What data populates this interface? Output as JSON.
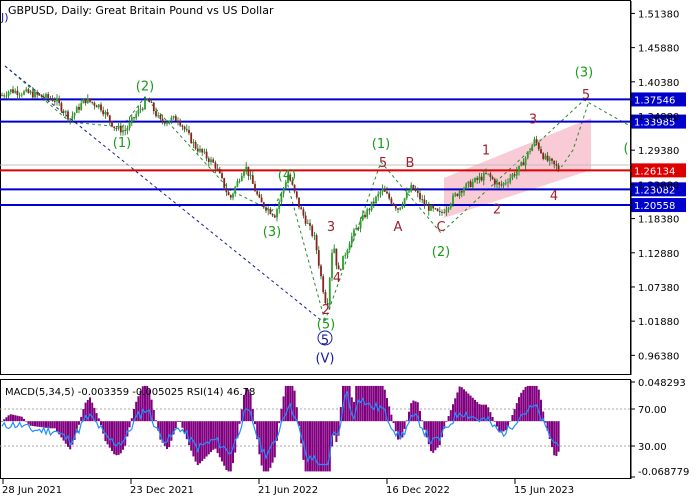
{
  "chart_data": {
    "type": "candlestick",
    "title": "GBPUSD, Daily:  Great Britain Pound vs US Dollar",
    "corner_mark": "J)",
    "price_axis": {
      "range": [
        0.9338,
        1.5338
      ],
      "ticks": [
        "1.51380",
        "1.45880",
        "1.40380",
        "1.34880",
        "1.29380",
        "1.23880",
        "1.18380",
        "1.12880",
        "1.07380",
        "1.01880",
        "0.96380"
      ]
    },
    "time_axis": {
      "labels": [
        "28 Jun 2021",
        "23 Dec 2021",
        "21 Jun 2022",
        "16 Dec 2022",
        "15 Jun 2023"
      ]
    },
    "levels": [
      {
        "value": 1.37546,
        "label": "1.37546",
        "color": "#0000cc"
      },
      {
        "value": 1.33985,
        "label": "1.33985",
        "color": "#0000cc"
      },
      {
        "value": 1.26134,
        "label": "1.26134",
        "color": "#dd0000"
      },
      {
        "value": 1.23082,
        "label": "1.23082",
        "color": "#0000cc"
      },
      {
        "value": 1.20558,
        "label": "1.20558",
        "color": "#0000cc"
      }
    ],
    "current_price_line": 1.27,
    "price_path": [
      [
        0,
        1.38
      ],
      [
        10,
        1.39
      ],
      [
        30,
        1.385
      ],
      [
        55,
        1.375
      ],
      [
        70,
        1.345
      ],
      [
        85,
        1.375
      ],
      [
        100,
        1.365
      ],
      [
        115,
        1.33
      ],
      [
        125,
        1.325
      ],
      [
        140,
        1.36
      ],
      [
        148,
        1.375
      ],
      [
        160,
        1.34
      ],
      [
        178,
        1.345
      ],
      [
        195,
        1.3
      ],
      [
        215,
        1.27
      ],
      [
        230,
        1.215
      ],
      [
        245,
        1.27
      ],
      [
        260,
        1.21
      ],
      [
        275,
        1.19
      ],
      [
        288,
        1.255
      ],
      [
        300,
        1.2
      ],
      [
        315,
        1.15
      ],
      [
        322,
        1.08
      ],
      [
        327,
        1.04
      ],
      [
        333,
        1.15
      ],
      [
        338,
        1.095
      ],
      [
        350,
        1.15
      ],
      [
        365,
        1.19
      ],
      [
        382,
        1.23
      ],
      [
        398,
        1.2
      ],
      [
        412,
        1.235
      ],
      [
        425,
        1.205
      ],
      [
        440,
        1.19
      ],
      [
        460,
        1.23
      ],
      [
        487,
        1.255
      ],
      [
        500,
        1.235
      ],
      [
        520,
        1.265
      ],
      [
        535,
        1.31
      ],
      [
        545,
        1.28
      ],
      [
        558,
        1.265
      ]
    ],
    "wave_labels": [
      {
        "text": "(2)",
        "x": 145,
        "price": 1.398,
        "color": "#1a9a1a"
      },
      {
        "text": "(1)",
        "x": 122,
        "price": 1.307,
        "color": "#1a9a1a"
      },
      {
        "text": "(4)",
        "x": 287,
        "price": 1.255,
        "color": "#1a9a1a"
      },
      {
        "text": "(3)",
        "x": 272,
        "price": 1.164,
        "color": "#1a9a1a"
      },
      {
        "text": "(1)",
        "x": 381,
        "price": 1.305,
        "color": "#1a9a1a"
      },
      {
        "text": "(2)",
        "x": 441,
        "price": 1.132,
        "color": "#1a9a1a"
      },
      {
        "text": "(3)",
        "x": 584,
        "price": 1.42,
        "color": "#1a9a1a"
      },
      {
        "text": "(5)",
        "x": 326,
        "price": 1.015,
        "color": "#1a9a1a"
      },
      {
        "text": "(",
        "x": 626,
        "price": 1.298,
        "color": "#1a9a1a"
      },
      {
        "text": "5",
        "x": 325,
        "price": 0.989,
        "color": "#1a1a9a"
      },
      {
        "text": "(V)",
        "x": 325,
        "price": 0.96,
        "color": "#1a1a9a"
      },
      {
        "text": "3",
        "x": 331,
        "price": 1.172,
        "color": "#a02030"
      },
      {
        "text": "4",
        "x": 337,
        "price": 1.09,
        "color": "#a02030"
      },
      {
        "text": "2",
        "x": 326,
        "price": 1.038,
        "color": "#a02030"
      },
      {
        "text": "5",
        "x": 383,
        "price": 1.275,
        "color": "#a02030"
      },
      {
        "text": "B",
        "x": 410,
        "price": 1.275,
        "color": "#a02030"
      },
      {
        "text": "A",
        "x": 398,
        "price": 1.172,
        "color": "#a02030"
      },
      {
        "text": "C",
        "x": 441,
        "price": 1.172,
        "color": "#a02030"
      },
      {
        "text": "1",
        "x": 486,
        "price": 1.295,
        "color": "#a02030"
      },
      {
        "text": "2",
        "x": 497,
        "price": 1.2,
        "color": "#a02030"
      },
      {
        "text": "3",
        "x": 533,
        "price": 1.345,
        "color": "#a02030"
      },
      {
        "text": "4",
        "x": 554,
        "price": 1.222,
        "color": "#a02030"
      },
      {
        "text": "5",
        "x": 586,
        "price": 1.384,
        "color": "#a02030"
      }
    ],
    "indicator": {
      "label": "MACD(5,34,5) -0.003359 -0.005025 RSI(14) 46.78",
      "macd_range": [
        -0.068779,
        0.048293
      ],
      "macd_ticks": [
        "0.048293",
        "-0.068779"
      ],
      "rsi_levels": [
        "70.00",
        "30.00"
      ]
    }
  }
}
